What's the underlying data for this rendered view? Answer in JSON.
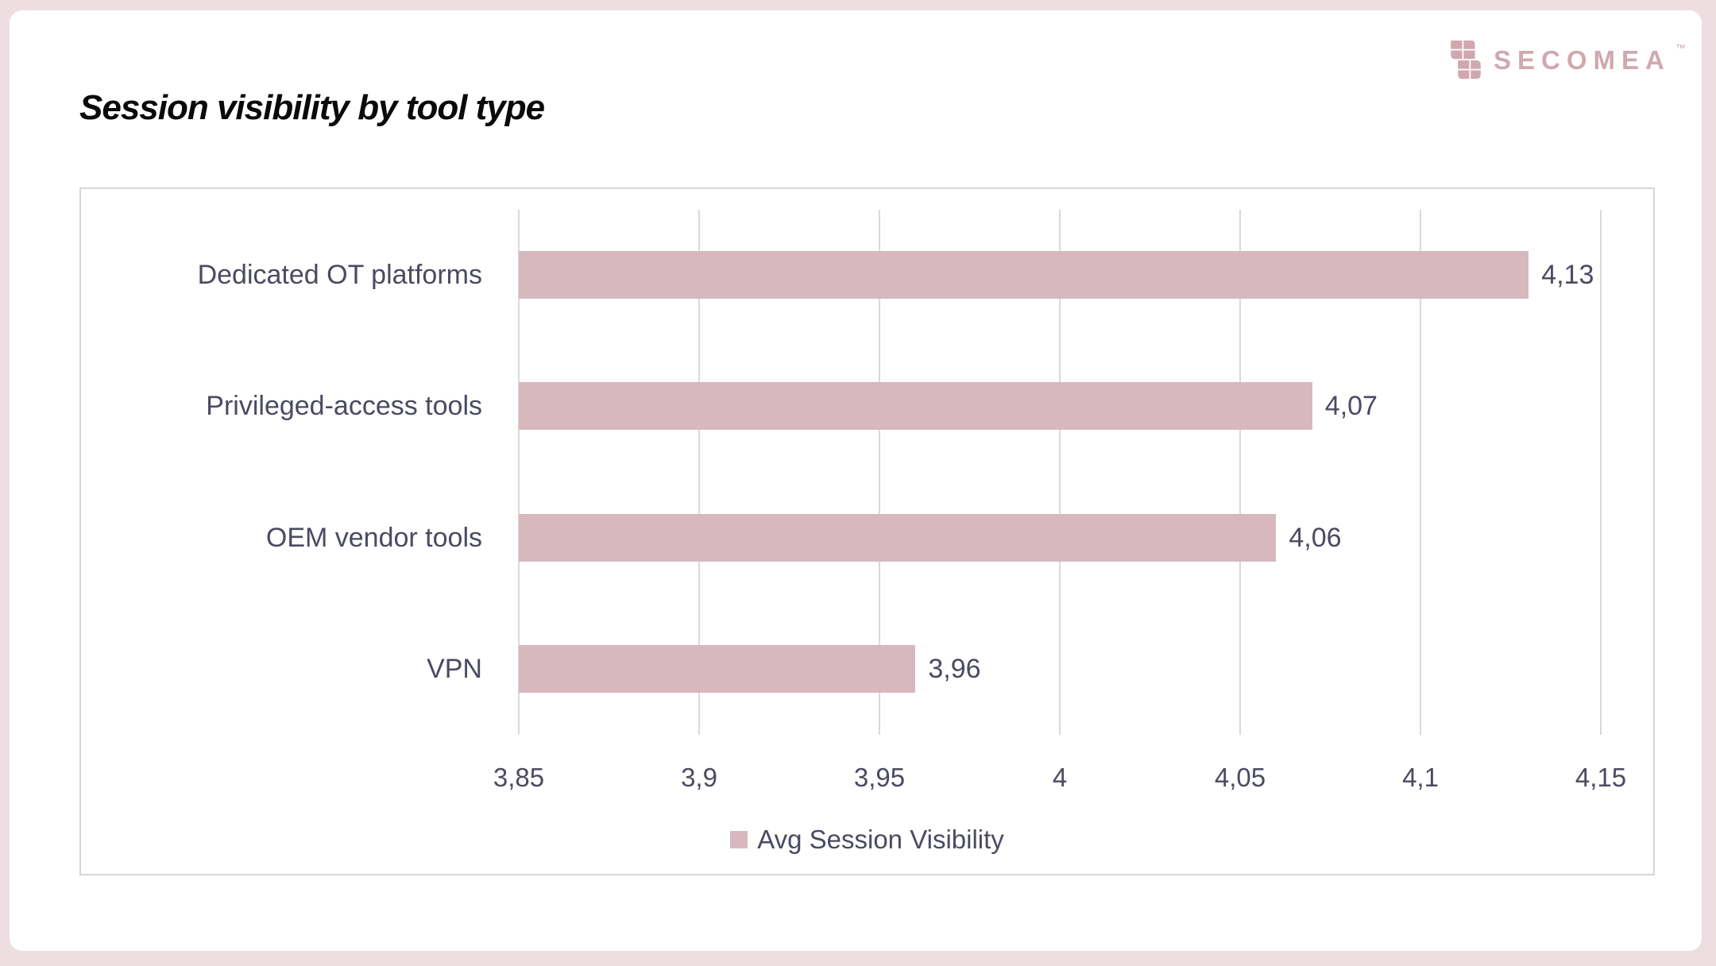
{
  "header": {
    "title": "Session visibility by tool type",
    "logo_text": "SECOMEA",
    "logo_mark": "™"
  },
  "legend": {
    "label": "Avg Session Visibility"
  },
  "chart_data": {
    "type": "bar",
    "orientation": "horizontal",
    "title": "Session visibility by tool type",
    "categories": [
      "Dedicated OT platforms",
      "Privileged-access tools",
      "OEM vendor tools",
      "VPN"
    ],
    "series": [
      {
        "name": "Avg Session Visibility",
        "values": [
          4.13,
          4.07,
          4.06,
          3.96
        ],
        "value_labels": [
          "4,13",
          "4,07",
          "4,06",
          "3,96"
        ]
      }
    ],
    "xlim": [
      3.85,
      4.15
    ],
    "xticks": [
      3.85,
      3.9,
      3.95,
      4.0,
      4.05,
      4.1,
      4.15
    ],
    "xtick_labels": [
      "3,85",
      "3,9",
      "3,95",
      "4",
      "4,05",
      "4,1",
      "4,15"
    ],
    "xlabel": "",
    "ylabel": "",
    "grid": true,
    "legend_position": "bottom",
    "decimal_separator": ",",
    "colors": {
      "bar": "#d8b8bf",
      "text": "#4a4b61",
      "gridline": "#d9d9d9",
      "frame_border": "#d6d6d6",
      "outer_background": "#efdee1",
      "card_background": "#ffffff",
      "logo": "#d1a8b0",
      "title": "#0a0a0a"
    }
  }
}
